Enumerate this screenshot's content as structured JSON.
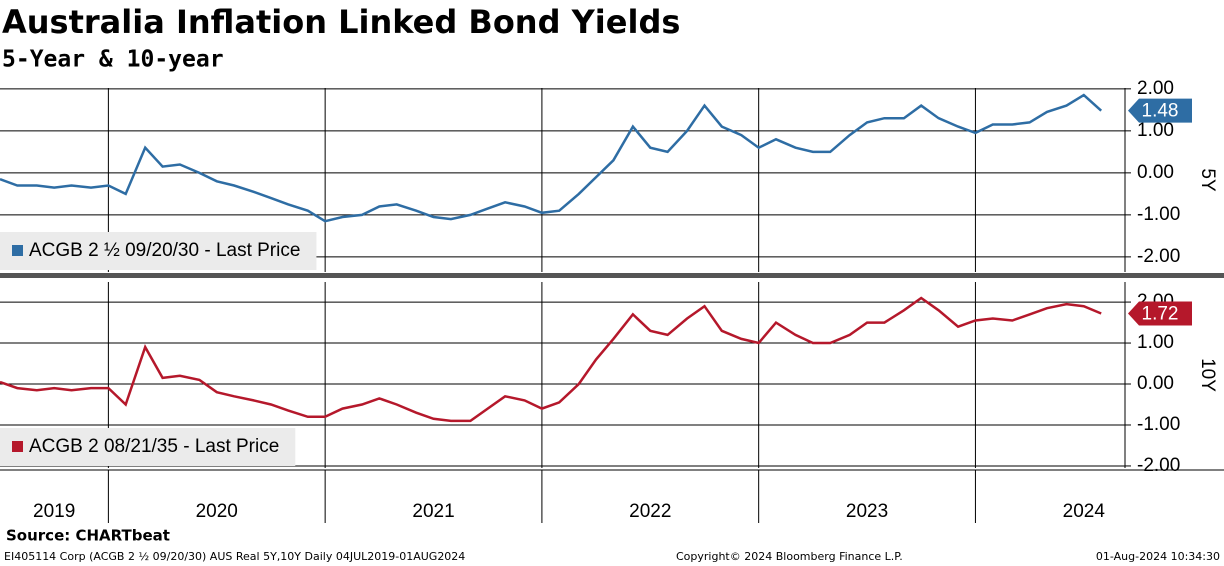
{
  "title": "Australia Inflation Linked Bond Yields",
  "subtitle": "5-Year & 10-year",
  "chart_data": [
    {
      "type": "line",
      "x": [
        2019.5,
        2019.58,
        2019.67,
        2019.75,
        2019.83,
        2019.92,
        2020.0,
        2020.08,
        2020.17,
        2020.25,
        2020.33,
        2020.42,
        2020.5,
        2020.58,
        2020.67,
        2020.75,
        2020.83,
        2020.92,
        2021.0,
        2021.08,
        2021.17,
        2021.25,
        2021.33,
        2021.42,
        2021.5,
        2021.58,
        2021.67,
        2021.75,
        2021.83,
        2021.92,
        2022.0,
        2022.08,
        2022.17,
        2022.25,
        2022.33,
        2022.42,
        2022.5,
        2022.58,
        2022.67,
        2022.75,
        2022.83,
        2022.92,
        2023.0,
        2023.08,
        2023.17,
        2023.25,
        2023.33,
        2023.42,
        2023.5,
        2023.58,
        2023.67,
        2023.75,
        2023.83,
        2023.92,
        2024.0,
        2024.08,
        2024.17,
        2024.25,
        2024.33,
        2024.42,
        2024.5,
        2024.58
      ],
      "series": [
        {
          "name": "ACGB 2 ½ 09/20/30 - Last Price",
          "color": "#2e6da4",
          "values": [
            -0.15,
            -0.3,
            -0.3,
            -0.35,
            -0.3,
            -0.35,
            -0.3,
            -0.5,
            0.6,
            0.15,
            0.2,
            0.0,
            -0.2,
            -0.3,
            -0.45,
            -0.6,
            -0.75,
            -0.9,
            -1.15,
            -1.05,
            -1.0,
            -0.8,
            -0.75,
            -0.9,
            -1.05,
            -1.1,
            -1.0,
            -0.85,
            -0.7,
            -0.8,
            -0.95,
            -0.9,
            -0.5,
            -0.1,
            0.3,
            1.1,
            0.6,
            0.5,
            1.0,
            1.6,
            1.1,
            0.9,
            0.6,
            0.8,
            0.6,
            0.5,
            0.5,
            0.9,
            1.2,
            1.3,
            1.3,
            1.6,
            1.3,
            1.1,
            0.95,
            1.15,
            1.15,
            1.2,
            1.45,
            1.6,
            1.85,
            1.48
          ]
        }
      ],
      "axis_label": "5Y",
      "xlim": [
        2019.5,
        2024.69
      ],
      "xgrid": [
        2020,
        2021,
        2022,
        2023,
        2024
      ],
      "ylim": [
        -2.36,
        2.02
      ],
      "yticks": [
        {
          "value": 2,
          "label": "2.00"
        },
        {
          "value": 1,
          "label": "1.00"
        },
        {
          "value": 0,
          "label": "0.00"
        },
        {
          "value": -1,
          "label": "-1.00"
        },
        {
          "value": -2,
          "label": "-2.00"
        }
      ],
      "grid": true
    },
    {
      "type": "line",
      "x": [
        2019.5,
        2019.58,
        2019.67,
        2019.75,
        2019.83,
        2019.92,
        2020.0,
        2020.08,
        2020.17,
        2020.25,
        2020.33,
        2020.42,
        2020.5,
        2020.58,
        2020.67,
        2020.75,
        2020.83,
        2020.92,
        2021.0,
        2021.08,
        2021.17,
        2021.25,
        2021.33,
        2021.42,
        2021.5,
        2021.58,
        2021.67,
        2021.75,
        2021.83,
        2021.92,
        2022.0,
        2022.08,
        2022.17,
        2022.25,
        2022.33,
        2022.42,
        2022.5,
        2022.58,
        2022.67,
        2022.75,
        2022.83,
        2022.92,
        2023.0,
        2023.08,
        2023.17,
        2023.25,
        2023.33,
        2023.42,
        2023.5,
        2023.58,
        2023.67,
        2023.75,
        2023.83,
        2023.92,
        2024.0,
        2024.08,
        2024.17,
        2024.25,
        2024.33,
        2024.42,
        2024.5,
        2024.58
      ],
      "series": [
        {
          "name": "ACGB 2 08/21/35 - Last Price",
          "color": "#b5182b",
          "values": [
            0.05,
            -0.1,
            -0.15,
            -0.1,
            -0.15,
            -0.1,
            -0.1,
            -0.5,
            0.9,
            0.15,
            0.2,
            0.1,
            -0.2,
            -0.3,
            -0.4,
            -0.5,
            -0.65,
            -0.8,
            -0.8,
            -0.6,
            -0.5,
            -0.35,
            -0.5,
            -0.7,
            -0.85,
            -0.9,
            -0.9,
            -0.6,
            -0.3,
            -0.4,
            -0.6,
            -0.45,
            0.0,
            0.6,
            1.1,
            1.7,
            1.3,
            1.2,
            1.6,
            1.9,
            1.3,
            1.1,
            1.0,
            1.5,
            1.2,
            1.0,
            1.0,
            1.2,
            1.5,
            1.5,
            1.8,
            2.1,
            1.8,
            1.4,
            1.55,
            1.6,
            1.55,
            1.7,
            1.85,
            1.95,
            1.9,
            1.72
          ]
        }
      ],
      "axis_label": "10Y",
      "xlim": [
        2019.5,
        2024.69
      ],
      "xgrid": [
        2020,
        2021,
        2022,
        2023,
        2024
      ],
      "ylim": [
        -2.05,
        2.49
      ],
      "yticks": [
        {
          "value": 2,
          "label": "2.00"
        },
        {
          "value": 1,
          "label": "1.00"
        },
        {
          "value": 0,
          "label": "0.00"
        },
        {
          "value": -1,
          "label": "-1.00"
        },
        {
          "value": -2,
          "label": "-2.00"
        }
      ],
      "grid": true
    }
  ],
  "x_axis": {
    "xlim": [
      2019.5,
      2024.69
    ],
    "xgrid": [
      2020,
      2021,
      2022,
      2023,
      2024
    ],
    "xticks": [
      {
        "value": 2019.75,
        "label": "2019"
      },
      {
        "value": 2020.5,
        "label": "2020"
      },
      {
        "value": 2021.5,
        "label": "2021"
      },
      {
        "value": 2022.5,
        "label": "2022"
      },
      {
        "value": 2023.5,
        "label": "2023"
      },
      {
        "value": 2024.5,
        "label": "2024"
      }
    ]
  },
  "footer": {
    "source": "Source: CHARTbeat",
    "description": "EI405114 Corp (ACGB 2 ½ 09/20/30) AUS Real 5Y,10Y  Daily 04JUL2019-01AUG2024",
    "copyright": "Copyright© 2024 Bloomberg Finance L.P.",
    "timestamp": "01-Aug-2024 10:34:30"
  }
}
